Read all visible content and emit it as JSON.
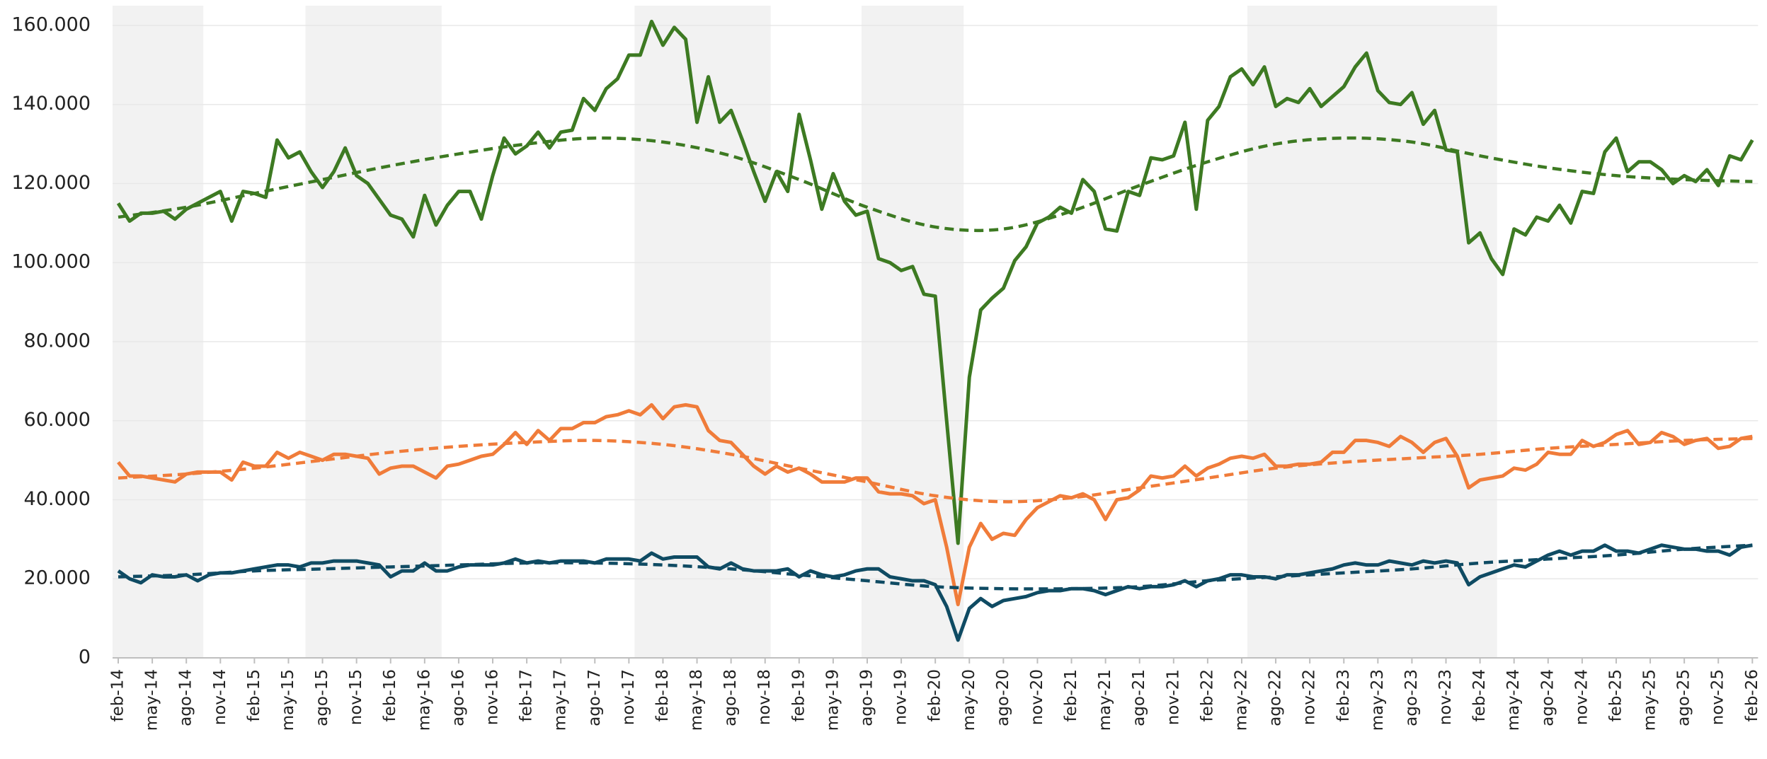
{
  "chart_data": {
    "type": "line",
    "ylim": [
      0,
      165000
    ],
    "yticks": [
      0,
      {
        "value": 20000,
        "label": "20.000"
      },
      {
        "value": 40000,
        "label": "40.000"
      },
      {
        "value": 60000,
        "label": "60.000"
      },
      {
        "value": 80000,
        "label": "80.000"
      },
      {
        "value": 100000,
        "label": "100.000"
      },
      {
        "value": 120000,
        "label": "120.000"
      },
      {
        "value": 140000,
        "label": "140.000"
      },
      {
        "value": 160000,
        "label": "160.000"
      }
    ],
    "grid": true,
    "shaded_ranges": [
      [
        0,
        7
      ],
      [
        17,
        28
      ],
      [
        46,
        57
      ],
      [
        66,
        74
      ],
      [
        100,
        121
      ]
    ],
    "shade_color": "#f2f2f2",
    "categories": [
      "feb-14",
      null,
      null,
      "may-14",
      null,
      null,
      "ago-14",
      null,
      null,
      "nov-14",
      null,
      null,
      "feb-15",
      null,
      null,
      "may-15",
      null,
      null,
      "ago-15",
      null,
      null,
      "nov-15",
      null,
      null,
      "feb-16",
      null,
      null,
      "may-16",
      null,
      null,
      "ago-16",
      null,
      null,
      "nov-16",
      null,
      null,
      "feb-17",
      null,
      null,
      "may-17",
      null,
      null,
      "ago-17",
      null,
      null,
      "nov-17",
      null,
      null,
      "feb-18",
      null,
      null,
      "may-18",
      null,
      null,
      "ago-18",
      null,
      null,
      "nov-18",
      null,
      null,
      "feb-19",
      null,
      null,
      "may-19",
      null,
      null,
      "ago-19",
      null,
      null,
      "nov-19",
      null,
      null,
      "feb-20",
      null,
      null,
      "may-20",
      null,
      null,
      "ago-20",
      null,
      null,
      "nov-20",
      null,
      null,
      "feb-21",
      null,
      null,
      "may-21",
      null,
      null,
      "ago-21",
      null,
      null,
      "nov-21",
      null,
      null,
      "feb-22",
      null,
      null,
      "may-22",
      null,
      null,
      "ago-22",
      null,
      null,
      "nov-22",
      null,
      null,
      "feb-23",
      null,
      null,
      "may-23",
      null,
      null,
      "ago-23",
      null,
      null,
      "nov-23",
      null,
      null,
      "feb-24",
      null,
      null,
      "may-24",
      null,
      null,
      "ago-24",
      null,
      null,
      "nov-24",
      null,
      null,
      "feb-25",
      null,
      null,
      "may-25",
      null,
      null,
      "ago-25",
      null,
      null,
      "nov-25",
      null,
      null,
      "feb-26"
    ],
    "series": [
      {
        "color": "#3d7a22",
        "values": [
          115000,
          110500,
          112500,
          112500,
          113000,
          111000,
          113500,
          115000,
          116500,
          118000,
          110500,
          118000,
          117500,
          116500,
          131000,
          126500,
          128000,
          123000,
          119000,
          123000,
          129000,
          122000,
          120000,
          116000,
          112000,
          111000,
          106500,
          117000,
          109500,
          114500,
          118000,
          118000,
          111000,
          122000,
          131500,
          127500,
          129500,
          133000,
          129000,
          133000,
          133500,
          141500,
          138500,
          144000,
          146500,
          152500,
          152500,
          161000,
          155000,
          159500,
          156500,
          135500,
          147000,
          135500,
          138500,
          131000,
          123000,
          115500,
          123000,
          118000,
          137500,
          126000,
          113500,
          122500,
          115500,
          112000,
          113000,
          101000,
          100000,
          98000,
          99000,
          92000,
          91500,
          60000,
          29000,
          71000,
          88000,
          91000,
          93500,
          100500,
          104000,
          110000,
          111500,
          114000,
          112500,
          121000,
          118000,
          108500,
          108000,
          118000,
          117000,
          126500,
          126000,
          127000,
          135500,
          113500,
          136000,
          139500,
          147000,
          149000,
          145000,
          149500,
          139500,
          141500,
          140500,
          144000,
          139500,
          142000,
          144500,
          149500,
          153000,
          143500,
          140500,
          140000,
          143000,
          135000,
          138500,
          128500,
          128000,
          105000,
          107500,
          101000,
          97000,
          108500,
          107000,
          111500,
          110500,
          114500,
          110000,
          118000,
          117500,
          128000,
          131500,
          123000,
          125500,
          125500,
          123500,
          120000,
          122000,
          120500,
          123500,
          119500,
          127000,
          126000,
          131000
        ]
      },
      {
        "color": "#f07c3a",
        "values": [
          49500,
          46000,
          46000,
          45500,
          45000,
          44500,
          46500,
          47000,
          47000,
          47000,
          45000,
          49500,
          48500,
          48500,
          52000,
          50500,
          52000,
          51000,
          50000,
          51500,
          51500,
          51000,
          50500,
          46500,
          48000,
          48500,
          48500,
          47000,
          45500,
          48500,
          49000,
          50000,
          51000,
          51500,
          54000,
          57000,
          54000,
          57500,
          55000,
          58000,
          58000,
          59500,
          59500,
          61000,
          61500,
          62500,
          61500,
          64000,
          60500,
          63500,
          64000,
          63500,
          57500,
          55000,
          54500,
          51500,
          48500,
          46500,
          48500,
          47000,
          48000,
          46500,
          44500,
          44500,
          44500,
          45500,
          45500,
          42000,
          41500,
          41500,
          41000,
          39000,
          40000,
          28000,
          13500,
          28000,
          34000,
          30000,
          31500,
          31000,
          35000,
          38000,
          39500,
          41000,
          40500,
          41500,
          40000,
          35000,
          40000,
          40500,
          42500,
          46000,
          45500,
          46000,
          48500,
          46000,
          48000,
          49000,
          50500,
          51000,
          50500,
          51500,
          48500,
          48500,
          49000,
          49000,
          49500,
          52000,
          52000,
          55000,
          55000,
          54500,
          53500,
          56000,
          54500,
          52000,
          54500,
          55500,
          51000,
          43000,
          45000,
          45500,
          46000,
          48000,
          47500,
          49000,
          52000,
          51500,
          51500,
          55000,
          53500,
          54500,
          56500,
          57500,
          54000,
          54500,
          57000,
          56000,
          54000,
          55000,
          55500,
          53000,
          53500,
          55500,
          56000
        ]
      },
      {
        "color": "#0f4b63",
        "values": [
          22000,
          20000,
          19000,
          21000,
          20500,
          20500,
          21000,
          19500,
          21000,
          21500,
          21500,
          22000,
          22500,
          23000,
          23500,
          23500,
          23000,
          24000,
          24000,
          24500,
          24500,
          24500,
          24000,
          23500,
          20500,
          22000,
          22000,
          24000,
          22000,
          22000,
          23000,
          23500,
          23500,
          23500,
          24000,
          25000,
          24000,
          24500,
          24000,
          24500,
          24500,
          24500,
          24000,
          25000,
          25000,
          25000,
          24500,
          26500,
          25000,
          25500,
          25500,
          25500,
          23000,
          22500,
          24000,
          22500,
          22000,
          22000,
          22000,
          22500,
          20500,
          22000,
          21000,
          20500,
          21000,
          22000,
          22500,
          22500,
          20500,
          20000,
          19500,
          19500,
          18500,
          13000,
          4500,
          12500,
          15000,
          13000,
          14500,
          15000,
          15500,
          16500,
          17000,
          17000,
          17500,
          17500,
          17000,
          16000,
          17000,
          18000,
          17500,
          18000,
          18000,
          18500,
          19500,
          18000,
          19500,
          20000,
          21000,
          21000,
          20500,
          20500,
          20000,
          21000,
          21000,
          21500,
          22000,
          22500,
          23500,
          24000,
          23500,
          23500,
          24500,
          24000,
          23500,
          24500,
          24000,
          24500,
          24000,
          18500,
          20500,
          21500,
          22500,
          23500,
          23000,
          24500,
          26000,
          27000,
          26000,
          27000,
          27000,
          28500,
          27000,
          27000,
          26500,
          27500,
          28500,
          28000,
          27500,
          27500,
          27000,
          27000,
          26000,
          28000,
          28500
        ]
      },
      {
        "color": "#3d7a22",
        "dashed": true,
        "x": [
          0,
          6,
          12,
          18,
          24,
          30,
          36,
          42,
          48,
          54,
          60,
          66,
          72,
          78,
          84,
          90,
          96,
          102,
          108,
          114,
          120,
          126,
          132,
          138,
          144
        ],
        "values": [
          111500,
          114000,
          117500,
          121000,
          124500,
          127500,
          130000,
          131500,
          130500,
          127000,
          121000,
          114000,
          109000,
          108500,
          113000,
          119500,
          125500,
          130000,
          131500,
          130500,
          127000,
          124000,
          122000,
          121000,
          120500
        ]
      },
      {
        "color": "#f07c3a",
        "dashed": true,
        "x": [
          0,
          6,
          12,
          18,
          24,
          30,
          36,
          42,
          48,
          54,
          60,
          66,
          72,
          78,
          84,
          90,
          96,
          102,
          108,
          114,
          120,
          126,
          132,
          138,
          144
        ],
        "values": [
          45500,
          46500,
          48000,
          50000,
          52000,
          53500,
          54500,
          55000,
          54000,
          51500,
          48000,
          44500,
          41000,
          39500,
          40500,
          43000,
          45500,
          48000,
          49500,
          50500,
          51500,
          53000,
          54000,
          55000,
          55500
        ]
      },
      {
        "color": "#0f4b63",
        "dashed": true,
        "x": [
          0,
          6,
          12,
          18,
          24,
          30,
          36,
          42,
          48,
          54,
          60,
          66,
          72,
          78,
          84,
          90,
          96,
          102,
          108,
          114,
          120,
          126,
          132,
          138,
          144
        ],
        "values": [
          20500,
          21000,
          22000,
          22500,
          23000,
          23500,
          24000,
          24000,
          23500,
          22500,
          21000,
          19500,
          18000,
          17500,
          17500,
          18000,
          19500,
          20500,
          21500,
          22500,
          24000,
          25000,
          26000,
          27500,
          28500
        ]
      }
    ]
  }
}
